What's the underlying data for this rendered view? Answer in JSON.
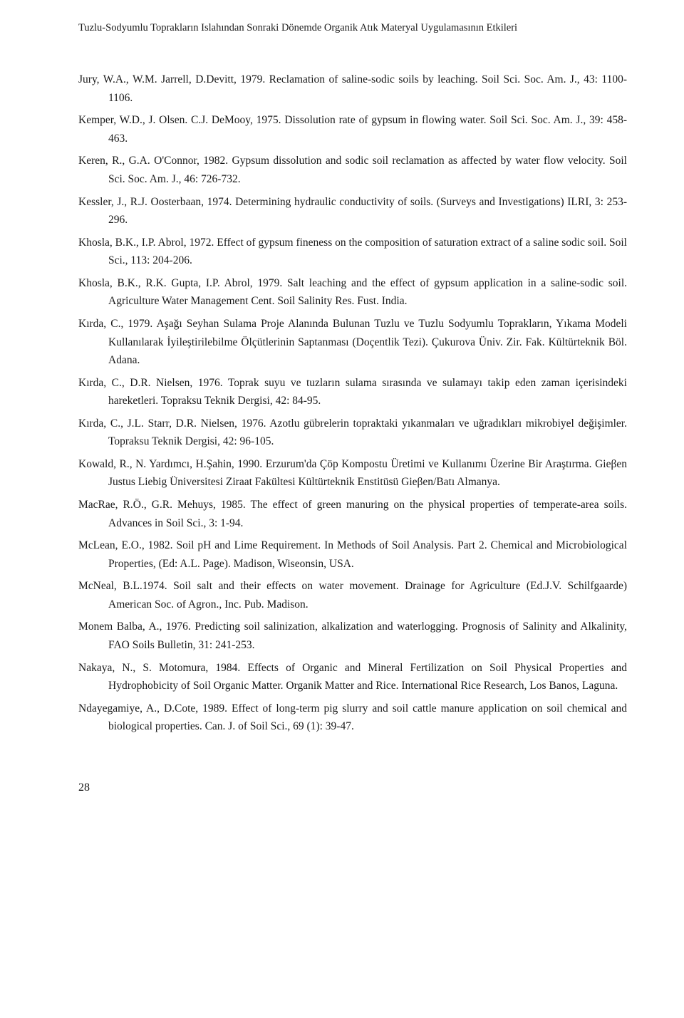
{
  "header": {
    "running_title": "Tuzlu-Sodyumlu Toprakların Islahından Sonraki Dönemde Organik Atık Materyal Uygulamasının Etkileri"
  },
  "references": [
    "Jury, W.A., W.M. Jarrell, D.Devitt, 1979. Reclamation of saline-sodic soils by leaching. Soil Sci. Soc. Am. J., 43: 1100-1106.",
    "Kemper, W.D., J. Olsen. C.J. DeMooy, 1975. Dissolution rate of gypsum in flowing water. Soil Sci. Soc. Am. J., 39: 458-463.",
    "Keren, R., G.A. O'Connor, 1982. Gypsum dissolution and sodic soil reclamation as affected by water flow velocity. Soil Sci. Soc. Am. J., 46: 726-732.",
    "Kessler, J., R.J. Oosterbaan, 1974. Determining hydraulic conductivity of soils. (Surveys and Investigations) ILRI, 3: 253-296.",
    "Khosla, B.K., I.P. Abrol, 1972. Effect of gypsum fineness on the composition of saturation extract of a saline sodic soil. Soil Sci., 113: 204-206.",
    "Khosla, B.K., R.K. Gupta, I.P. Abrol, 1979. Salt leaching and the effect of gypsum application in a saline-sodic soil. Agriculture Water Management Cent. Soil Salinity Res. Fust. India.",
    "Kırda, C., 1979. Aşağı Seyhan Sulama Proje Alanında Bulunan Tuzlu ve Tuzlu Sodyumlu Toprakların, Yıkama Modeli Kullanılarak İyileştirilebilme Ölçütlerinin Saptanması (Doçentlik Tezi). Çukurova Üniv. Zir. Fak. Kültürteknik Böl. Adana.",
    "Kırda, C., D.R. Nielsen, 1976. Toprak suyu ve tuzların sulama sırasında ve sulamayı takip eden zaman içerisindeki hareketleri. Topraksu Teknik Dergisi, 42: 84-95.",
    "Kırda, C., J.L. Starr, D.R. Nielsen, 1976. Azotlu gübrelerin topraktaki yıkanmaları ve uğradıkları mikrobiyel değişimler. Topraksu Teknik Dergisi, 42: 96-105.",
    "Kowald, R., N. Yardımcı, H.Şahin, 1990. Erzurum'da Çöp Kompostu Üretimi ve Kullanımı Üzerine Bir Araştırma. Gieβen Justus Liebig Üniversitesi Ziraat Fakültesi Kültürteknik Enstitüsü Gieβen/Batı Almanya.",
    "MacRae, R.Ö., G.R. Mehuys, 1985. The effect of green manuring on the physical properties of temperate-area soils. Advances in Soil Sci., 3: 1-94.",
    "McLean, E.O., 1982. Soil pH and Lime Requirement. In Methods of Soil Analysis. Part 2. Chemical and Microbiological Properties, (Ed: A.L. Page). Madison, Wiseonsin, USA.",
    "McNeal, B.L.1974. Soil salt and their effects on water movement. Drainage for Agriculture (Ed.J.V. Schilfgaarde) American Soc. of Agron., Inc. Pub. Madison.",
    "Monem Balba, A., 1976. Predicting soil salinization, alkalization and waterlogging. Prognosis of Salinity and Alkalinity, FAO Soils Bulletin, 31: 241-253.",
    "Nakaya, N., S. Motomura, 1984. Effects of Organic and Mineral Fertilization on Soil Physical Properties and Hydrophobicity of Soil Organic Matter. Organik Matter and Rice. International Rice Research, Los Banos, Laguna.",
    "Ndayegamiye, A., D.Cote, 1989. Effect of long-term pig slurry and soil cattle manure application on soil chemical and biological properties. Can. J. of Soil Sci., 69 (1): 39-47."
  ],
  "page_number": "28"
}
